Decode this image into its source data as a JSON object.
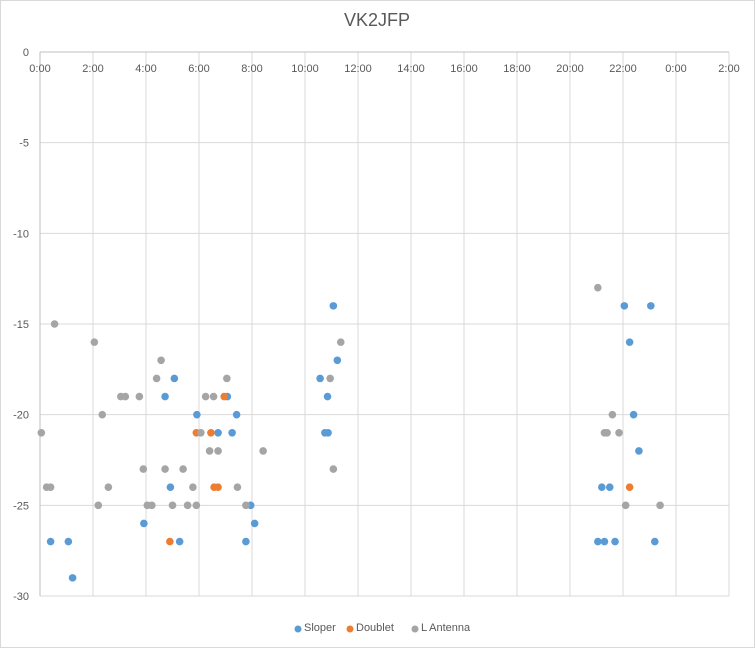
{
  "chart_data": {
    "type": "scatter",
    "title": "VK2JFP",
    "xlabel": "",
    "ylabel": "",
    "xlim": [
      0,
      26
    ],
    "ylim": [
      -30,
      0
    ],
    "grid": true,
    "legend_position": "bottom",
    "x_tick_labels": [
      "0:00",
      "2:00",
      "4:00",
      "6:00",
      "8:00",
      "10:00",
      "12:00",
      "14:00",
      "16:00",
      "18:00",
      "20:00",
      "22:00",
      "0:00",
      "2:00"
    ],
    "y_tick_labels": [
      "0",
      "-5",
      "-10",
      "-15",
      "-20",
      "-25",
      "-30"
    ],
    "y_ticks": [
      0,
      -5,
      -10,
      -15,
      -20,
      -25,
      -30
    ],
    "series": [
      {
        "name": "Sloper",
        "color": "#5b9bd5",
        "points": [
          [
            0.4,
            -27
          ],
          [
            1.07,
            -27
          ],
          [
            1.23,
            -29
          ],
          [
            3.92,
            -26
          ],
          [
            4.72,
            -19
          ],
          [
            4.92,
            -24
          ],
          [
            5.07,
            -18
          ],
          [
            5.27,
            -27
          ],
          [
            5.92,
            -20
          ],
          [
            6.72,
            -21
          ],
          [
            7.07,
            -19
          ],
          [
            7.25,
            -21
          ],
          [
            7.42,
            -20
          ],
          [
            7.77,
            -27
          ],
          [
            7.95,
            -25
          ],
          [
            8.1,
            -26
          ],
          [
            10.57,
            -18
          ],
          [
            10.75,
            -21
          ],
          [
            10.87,
            -21
          ],
          [
            10.85,
            -19
          ],
          [
            11.07,
            -14
          ],
          [
            11.22,
            -17
          ],
          [
            21.05,
            -27
          ],
          [
            21.2,
            -24
          ],
          [
            21.3,
            -27
          ],
          [
            21.5,
            -24
          ],
          [
            21.7,
            -27
          ],
          [
            22.05,
            -14
          ],
          [
            22.25,
            -16
          ],
          [
            22.4,
            -20
          ],
          [
            22.6,
            -22
          ],
          [
            23.05,
            -14
          ],
          [
            23.2,
            -27
          ]
        ]
      },
      {
        "name": "Doublet",
        "color": "#ed7d31",
        "points": [
          [
            4.9,
            -27
          ],
          [
            5.9,
            -21
          ],
          [
            6.45,
            -21
          ],
          [
            6.57,
            -24
          ],
          [
            6.72,
            -24
          ],
          [
            6.95,
            -19
          ],
          [
            22.25,
            -24
          ]
        ]
      },
      {
        "name": "L Antenna",
        "color": "#a5a5a5",
        "points": [
          [
            0.05,
            -21
          ],
          [
            0.25,
            -24
          ],
          [
            0.4,
            -24
          ],
          [
            0.55,
            -15
          ],
          [
            2.05,
            -16
          ],
          [
            2.2,
            -25
          ],
          [
            2.35,
            -20
          ],
          [
            2.58,
            -24
          ],
          [
            3.05,
            -19
          ],
          [
            3.22,
            -19
          ],
          [
            3.75,
            -19
          ],
          [
            3.9,
            -23
          ],
          [
            4.05,
            -25
          ],
          [
            4.22,
            -25
          ],
          [
            4.4,
            -18
          ],
          [
            4.57,
            -17
          ],
          [
            4.72,
            -23
          ],
          [
            5.0,
            -25
          ],
          [
            5.4,
            -23
          ],
          [
            5.57,
            -25
          ],
          [
            5.77,
            -24
          ],
          [
            5.9,
            -25
          ],
          [
            6.07,
            -21
          ],
          [
            6.25,
            -19
          ],
          [
            6.4,
            -22
          ],
          [
            6.55,
            -19
          ],
          [
            6.72,
            -22
          ],
          [
            7.05,
            -18
          ],
          [
            7.45,
            -24
          ],
          [
            7.77,
            -25
          ],
          [
            8.42,
            -22
          ],
          [
            10.95,
            -18
          ],
          [
            11.07,
            -23
          ],
          [
            11.35,
            -16
          ],
          [
            21.05,
            -13
          ],
          [
            21.3,
            -21
          ],
          [
            21.4,
            -21
          ],
          [
            21.6,
            -20
          ],
          [
            21.85,
            -21
          ],
          [
            22.1,
            -25
          ],
          [
            23.4,
            -25
          ]
        ]
      }
    ]
  }
}
